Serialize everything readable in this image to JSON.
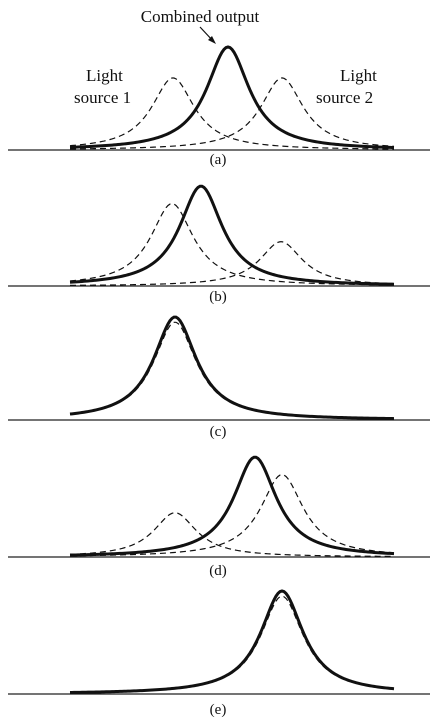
{
  "figure": {
    "annotations": {
      "combined": "Combined output",
      "source1_line1": "Light",
      "source1_line2": "source 1",
      "source2_line1": "Light",
      "source2_line2": "source 2"
    },
    "panels": [
      {
        "label": "(a)",
        "source1": {
          "amp": 0.7,
          "present": true
        },
        "source2": {
          "amp": 0.7,
          "present": true
        },
        "combined": {
          "amp": 1.0
        }
      },
      {
        "label": "(b)",
        "source1": {
          "amp": 0.8,
          "present": true
        },
        "source2": {
          "amp": 0.43,
          "present": true
        },
        "combined": {
          "amp": 0.97
        }
      },
      {
        "label": "(c)",
        "source1": {
          "amp": 0.95,
          "present": true
        },
        "source2": {
          "amp": 0.0,
          "present": false
        },
        "combined": {
          "amp": 1.0
        }
      },
      {
        "label": "(d)",
        "source1": {
          "amp": 0.43,
          "present": true
        },
        "source2": {
          "amp": 0.8,
          "present": true
        },
        "combined": {
          "amp": 0.97
        }
      },
      {
        "label": "(e)",
        "source1": {
          "amp": 0.0,
          "present": false
        },
        "source2": {
          "amp": 0.95,
          "present": true
        },
        "combined": {
          "amp": 1.0
        }
      }
    ],
    "colors": {
      "line": "#111111",
      "baseline": "#222222"
    }
  }
}
